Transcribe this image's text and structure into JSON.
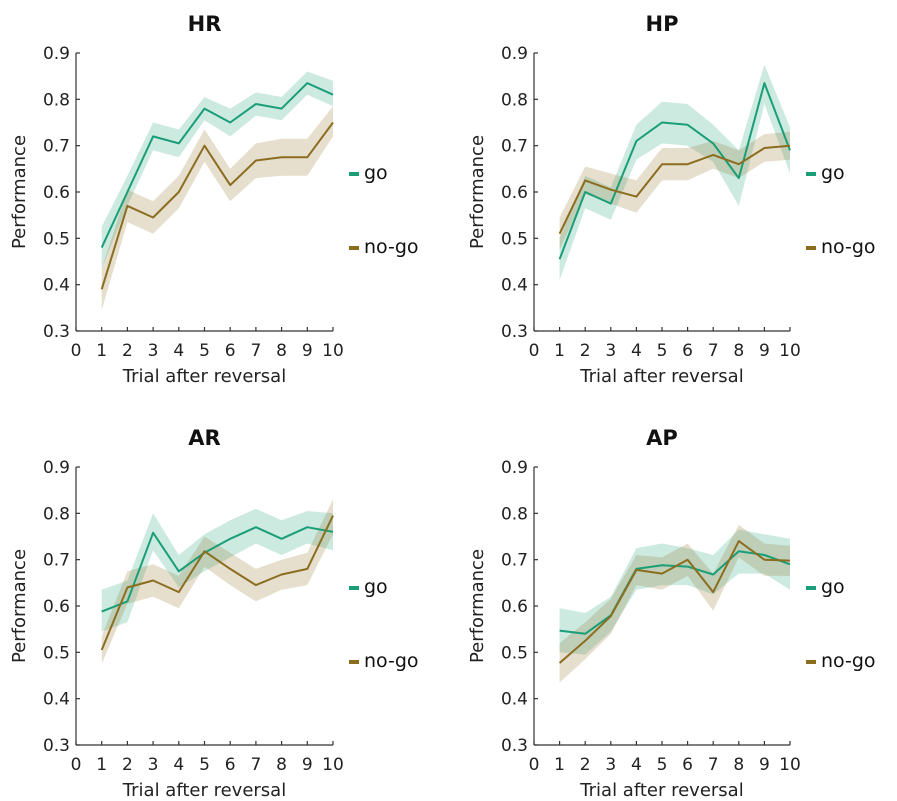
{
  "chart_data": [
    {
      "type": "line",
      "title": "HR",
      "xlabel": "Trial after reversal",
      "ylabel": "Performance",
      "xlim": [
        0,
        10
      ],
      "ylim": [
        0.3,
        0.9
      ],
      "xticks": [
        0,
        1,
        2,
        3,
        4,
        5,
        6,
        7,
        8,
        9,
        10
      ],
      "yticks": [
        0.3,
        0.4,
        0.5,
        0.6,
        0.7,
        0.8,
        0.9
      ],
      "x": [
        1,
        2,
        3,
        4,
        5,
        6,
        7,
        8,
        9,
        10
      ],
      "legend": "right",
      "series": [
        {
          "name": "go",
          "color": "#1a9e77",
          "values": [
            0.48,
            0.6,
            0.72,
            0.705,
            0.78,
            0.75,
            0.79,
            0.78,
            0.835,
            0.81
          ],
          "lower": [
            0.435,
            0.57,
            0.69,
            0.675,
            0.755,
            0.72,
            0.765,
            0.755,
            0.81,
            0.785
          ],
          "upper": [
            0.525,
            0.635,
            0.75,
            0.735,
            0.805,
            0.78,
            0.815,
            0.805,
            0.86,
            0.84
          ]
        },
        {
          "name": "no-go",
          "color": "#8c6d1f",
          "values": [
            0.39,
            0.57,
            0.545,
            0.6,
            0.7,
            0.615,
            0.668,
            0.675,
            0.675,
            0.75
          ],
          "lower": [
            0.345,
            0.535,
            0.51,
            0.565,
            0.665,
            0.58,
            0.63,
            0.635,
            0.635,
            0.72
          ],
          "upper": [
            0.435,
            0.605,
            0.58,
            0.635,
            0.735,
            0.65,
            0.705,
            0.715,
            0.715,
            0.785
          ]
        }
      ]
    },
    {
      "type": "line",
      "title": "HP",
      "xlabel": "Trial after reversal",
      "ylabel": "Performance",
      "xlim": [
        0,
        10
      ],
      "ylim": [
        0.3,
        0.9
      ],
      "xticks": [
        0,
        1,
        2,
        3,
        4,
        5,
        6,
        7,
        8,
        9,
        10
      ],
      "yticks": [
        0.3,
        0.4,
        0.5,
        0.6,
        0.7,
        0.8,
        0.9
      ],
      "x": [
        1,
        2,
        3,
        4,
        5,
        6,
        7,
        8,
        9,
        10
      ],
      "legend": "right",
      "series": [
        {
          "name": "go",
          "color": "#1a9e77",
          "values": [
            0.455,
            0.6,
            0.575,
            0.71,
            0.75,
            0.745,
            0.705,
            0.63,
            0.835,
            0.69
          ],
          "lower": [
            0.41,
            0.565,
            0.54,
            0.67,
            0.705,
            0.7,
            0.665,
            0.57,
            0.79,
            0.64
          ],
          "upper": [
            0.5,
            0.635,
            0.61,
            0.745,
            0.795,
            0.79,
            0.745,
            0.69,
            0.875,
            0.74
          ]
        },
        {
          "name": "no-go",
          "color": "#8c6d1f",
          "values": [
            0.51,
            0.625,
            0.605,
            0.59,
            0.66,
            0.66,
            0.68,
            0.66,
            0.695,
            0.7
          ],
          "lower": [
            0.475,
            0.595,
            0.575,
            0.555,
            0.625,
            0.625,
            0.65,
            0.63,
            0.665,
            0.67
          ],
          "upper": [
            0.545,
            0.655,
            0.64,
            0.625,
            0.695,
            0.695,
            0.71,
            0.69,
            0.725,
            0.73
          ]
        }
      ]
    },
    {
      "type": "line",
      "title": "AR",
      "xlabel": "Trial after reversal",
      "ylabel": "Performance",
      "xlim": [
        0,
        10
      ],
      "ylim": [
        0.3,
        0.9
      ],
      "xticks": [
        0,
        1,
        2,
        3,
        4,
        5,
        6,
        7,
        8,
        9,
        10
      ],
      "yticks": [
        0.3,
        0.4,
        0.5,
        0.6,
        0.7,
        0.8,
        0.9
      ],
      "x": [
        1,
        2,
        3,
        4,
        5,
        6,
        7,
        8,
        9,
        10
      ],
      "legend": "right",
      "series": [
        {
          "name": "go",
          "color": "#1a9e77",
          "values": [
            0.588,
            0.61,
            0.758,
            0.675,
            0.715,
            0.745,
            0.77,
            0.745,
            0.77,
            0.76
          ],
          "lower": [
            0.545,
            0.565,
            0.72,
            0.64,
            0.675,
            0.705,
            0.735,
            0.71,
            0.735,
            0.72
          ],
          "upper": [
            0.635,
            0.655,
            0.8,
            0.71,
            0.755,
            0.785,
            0.81,
            0.785,
            0.805,
            0.8
          ]
        },
        {
          "name": "no-go",
          "color": "#8c6d1f",
          "values": [
            0.505,
            0.64,
            0.655,
            0.63,
            0.718,
            0.68,
            0.645,
            0.668,
            0.68,
            0.795
          ],
          "lower": [
            0.475,
            0.605,
            0.62,
            0.595,
            0.685,
            0.645,
            0.61,
            0.635,
            0.645,
            0.755
          ],
          "upper": [
            0.535,
            0.675,
            0.69,
            0.665,
            0.75,
            0.715,
            0.68,
            0.7,
            0.715,
            0.83
          ]
        }
      ]
    },
    {
      "type": "line",
      "title": "AP",
      "xlabel": "Trial after reversal",
      "ylabel": "Performance",
      "xlim": [
        0,
        10
      ],
      "ylim": [
        0.3,
        0.9
      ],
      "xticks": [
        0,
        1,
        2,
        3,
        4,
        5,
        6,
        7,
        8,
        9,
        10
      ],
      "yticks": [
        0.3,
        0.4,
        0.5,
        0.6,
        0.7,
        0.8,
        0.9
      ],
      "x": [
        1,
        2,
        3,
        4,
        5,
        6,
        7,
        8,
        9,
        10
      ],
      "legend": "right",
      "series": [
        {
          "name": "go",
          "color": "#1a9e77",
          "values": [
            0.547,
            0.54,
            0.58,
            0.68,
            0.688,
            0.685,
            0.668,
            0.718,
            0.71,
            0.69
          ],
          "lower": [
            0.5,
            0.495,
            0.545,
            0.635,
            0.645,
            0.645,
            0.625,
            0.67,
            0.67,
            0.635
          ],
          "upper": [
            0.595,
            0.585,
            0.62,
            0.725,
            0.735,
            0.725,
            0.71,
            0.765,
            0.755,
            0.745
          ]
        },
        {
          "name": "no-go",
          "color": "#8c6d1f",
          "values": [
            0.477,
            0.525,
            0.578,
            0.678,
            0.67,
            0.7,
            0.63,
            0.74,
            0.7,
            0.698
          ],
          "lower": [
            0.435,
            0.485,
            0.54,
            0.645,
            0.635,
            0.665,
            0.59,
            0.705,
            0.665,
            0.665
          ],
          "upper": [
            0.52,
            0.565,
            0.615,
            0.71,
            0.705,
            0.735,
            0.67,
            0.775,
            0.735,
            0.73
          ]
        }
      ]
    }
  ]
}
